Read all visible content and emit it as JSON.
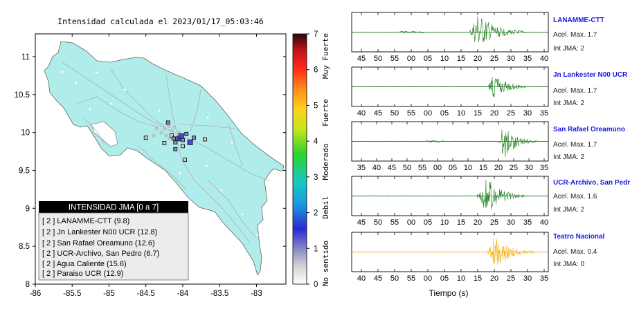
{
  "map": {
    "title": "Intensidad calculada el 2023/01/17_05:03:46",
    "lon_ticks": [
      "-86",
      "-85.5",
      "-85",
      "-84.5",
      "-84",
      "-83.5",
      "-83"
    ],
    "lat_ticks": [
      "11",
      "10.5",
      "10",
      "9.5",
      "9",
      "8.5",
      "8"
    ],
    "colorbar": {
      "ticks": [
        "7",
        "6",
        "5",
        "4",
        "3",
        "2",
        "1",
        "0"
      ],
      "category_labels": [
        "Muy Fuerte",
        "Fuerte",
        "Moderado",
        "Debil",
        "No sentido"
      ]
    },
    "legend": {
      "title": "INTENSIDAD JMA [0 a 7]",
      "items": [
        "[ 2 ]  LANAMME-CTT (9.8)",
        "[ 2 ]  Jn Lankester N00 UCR (12.8)",
        "[ 2 ]  San Rafael Oreamuno (12.6)",
        "[ 2 ]  UCR-Archivo, San Pedro (6.7)",
        "[ 2 ]  Agua Caliente (15.6)",
        "[ 2 ]  Paraiso UCR (12.9)"
      ]
    }
  },
  "traces": {
    "xlabel": "Tiempo (s)",
    "colors": {
      "normal": "#1a7a1a",
      "highlight": "#f5a800",
      "station_name": "#1a1adc"
    },
    "panels": [
      {
        "name": "LANAMME-CTT",
        "accel": "Acel. Max. 1.7",
        "jma": "Int JMA: 2",
        "ticks": [
          "45",
          "50",
          "55",
          "00",
          "05",
          "10",
          "15",
          "20",
          "25",
          "30",
          "35",
          "40"
        ]
      },
      {
        "name": "Jn Lankester N00 UCR",
        "accel": "Acel. Max. 1.7",
        "jma": "Int JMA: 2",
        "ticks": [
          "40",
          "45",
          "50",
          "55",
          "00",
          "05",
          "10",
          "15",
          "20",
          "25",
          "30",
          "35"
        ]
      },
      {
        "name": "San Rafael Oreamuno",
        "accel": "Acel. Max. 1.7",
        "jma": "Int JMA: 2",
        "ticks": [
          "35",
          "40",
          "45",
          "50",
          "55",
          "00",
          "05",
          "10",
          "15",
          "20",
          "25",
          "30",
          "35"
        ]
      },
      {
        "name": "UCR-Archivo, San Pedro",
        "accel": "Acel. Max. 1.6",
        "jma": "Int JMA: 2",
        "ticks": [
          "45",
          "50",
          "55",
          "00",
          "05",
          "10",
          "15",
          "20",
          "25",
          "30",
          "35",
          "40"
        ]
      },
      {
        "name": "Teatro Nacional",
        "accel": "Acel. Max. 0.4",
        "jma": "Int JMA: 0",
        "ticks": [
          "40",
          "45",
          "50",
          "55",
          "00",
          "05",
          "10",
          "15",
          "20",
          "25",
          "30",
          "35"
        ]
      }
    ]
  },
  "chart_data": [
    {
      "type": "scatter",
      "title": "Intensidad calculada el 2023/01/17_05:03:46",
      "xlabel": "",
      "ylabel": "",
      "xlim": [
        -86,
        -82.6
      ],
      "ylim": [
        8,
        11.3
      ],
      "colorbar_range": [
        0,
        7
      ],
      "legend_placement": "bottom-left",
      "series": [
        {
          "name": "INTENSIDAD JMA [0 a 7]",
          "points": [
            {
              "lon": -83.9,
              "lat": 9.87,
              "jma": 2
            },
            {
              "lon": -84.05,
              "lat": 9.92,
              "jma": 2
            },
            {
              "lon": -84.02,
              "lat": 9.95,
              "jma": 2
            },
            {
              "lon": -84.0,
              "lat": 9.9,
              "jma": 1
            },
            {
              "lon": -83.95,
              "lat": 9.98,
              "jma": 1
            },
            {
              "lon": -84.1,
              "lat": 9.87,
              "jma": 1
            },
            {
              "lon": -84.2,
              "lat": 10.13,
              "jma": 1
            },
            {
              "lon": -84.5,
              "lat": 9.93,
              "jma": 0
            },
            {
              "lon": -84.25,
              "lat": 9.86,
              "jma": 0
            },
            {
              "lon": -84.1,
              "lat": 9.78,
              "jma": 1
            },
            {
              "lon": -84.0,
              "lat": 9.82,
              "jma": 0
            },
            {
              "lon": -83.7,
              "lat": 9.91,
              "jma": 0
            },
            {
              "lon": -83.97,
              "lat": 9.64,
              "jma": 0
            },
            {
              "lon": -83.85,
              "lat": 9.93,
              "jma": 1
            },
            {
              "lon": -84.15,
              "lat": 9.96,
              "jma": 0
            },
            {
              "lon": -84.12,
              "lat": 9.92,
              "jma": 1
            }
          ]
        }
      ]
    },
    {
      "type": "line",
      "xlabel": "Tiempo (s)",
      "series": [
        {
          "name": "LANAMME-CTT",
          "peak_time": "20-25",
          "peak_accel": 1.7
        },
        {
          "name": "Jn Lankester N00 UCR",
          "peak_time": "20",
          "peak_accel": 1.7
        },
        {
          "name": "San Rafael Oreamuno",
          "peak_time": "20",
          "peak_accel": 1.7
        },
        {
          "name": "UCR-Archivo, San Pedro",
          "peak_time": "20-25",
          "peak_accel": 1.6
        },
        {
          "name": "Teatro Nacional",
          "peak_time": "20-25",
          "peak_accel": 0.4
        }
      ]
    }
  ]
}
